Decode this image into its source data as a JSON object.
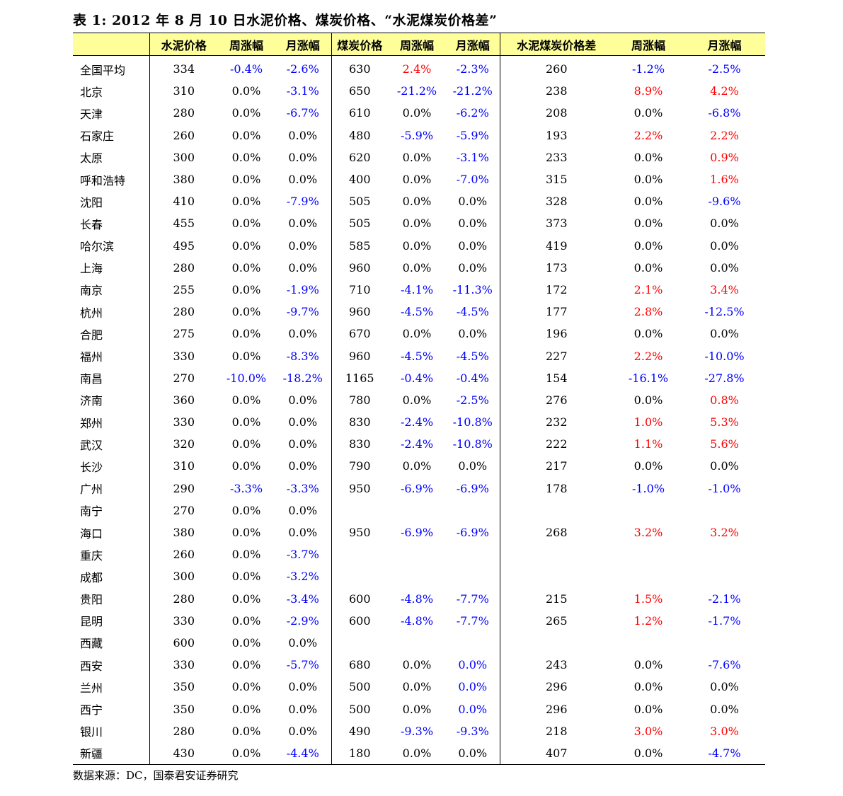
{
  "title": "表 1:  2012 年 8 月 10 日水泥价格、煤炭价格、“水泥煤炭价格差”",
  "headers": [
    "",
    "水泥价格",
    "周涨幅",
    "月涨幅",
    "煤炭价格",
    "周涨幅",
    "月涨幅",
    "水泥煤炭价格差",
    "周涨幅",
    "月涨幅"
  ],
  "rows": [
    [
      "全国平均",
      "334",
      "-0.4%",
      "-2.6%",
      "630",
      "2.4%",
      "-2.3%",
      "260",
      "-1.2%",
      "-2.5%"
    ],
    [
      "北京",
      "310",
      "0.0%",
      "-3.1%",
      "650",
      "-21.2%",
      "-21.2%",
      "238",
      "8.9%",
      "4.2%"
    ],
    [
      "天津",
      "280",
      "0.0%",
      "-6.7%",
      "610",
      "0.0%",
      "-6.2%",
      "208",
      "0.0%",
      "-6.8%"
    ],
    [
      "石家庄",
      "260",
      "0.0%",
      "0.0%",
      "480",
      "-5.9%",
      "-5.9%",
      "193",
      "2.2%",
      "2.2%"
    ],
    [
      "太原",
      "300",
      "0.0%",
      "0.0%",
      "620",
      "0.0%",
      "-3.1%",
      "233",
      "0.0%",
      "0.9%"
    ],
    [
      "呼和浩特",
      "380",
      "0.0%",
      "0.0%",
      "400",
      "0.0%",
      "-7.0%",
      "315",
      "0.0%",
      "1.6%"
    ],
    [
      "沈阳",
      "410",
      "0.0%",
      "-7.9%",
      "505",
      "0.0%",
      "0.0%",
      "328",
      "0.0%",
      "-9.6%"
    ],
    [
      "长春",
      "455",
      "0.0%",
      "0.0%",
      "505",
      "0.0%",
      "0.0%",
      "373",
      "0.0%",
      "0.0%"
    ],
    [
      "哈尔滨",
      "495",
      "0.0%",
      "0.0%",
      "585",
      "0.0%",
      "0.0%",
      "419",
      "0.0%",
      "0.0%"
    ],
    [
      "上海",
      "280",
      "0.0%",
      "0.0%",
      "960",
      "0.0%",
      "0.0%",
      "173",
      "0.0%",
      "0.0%"
    ],
    [
      "南京",
      "255",
      "0.0%",
      "-1.9%",
      "710",
      "-4.1%",
      "-11.3%",
      "172",
      "2.1%",
      "3.4%"
    ],
    [
      "杭州",
      "280",
      "0.0%",
      "-9.7%",
      "960",
      "-4.5%",
      "-4.5%",
      "177",
      "2.8%",
      "-12.5%"
    ],
    [
      "合肥",
      "275",
      "0.0%",
      "0.0%",
      "670",
      "0.0%",
      "0.0%",
      "196",
      "0.0%",
      "0.0%"
    ],
    [
      "福州",
      "330",
      "0.0%",
      "-8.3%",
      "960",
      "-4.5%",
      "-4.5%",
      "227",
      "2.2%",
      "-10.0%"
    ],
    [
      "南昌",
      "270",
      "-10.0%",
      "-18.2%",
      "1165",
      "-0.4%",
      "-0.4%",
      "154",
      "-16.1%",
      "-27.8%"
    ],
    [
      "济南",
      "360",
      "0.0%",
      "0.0%",
      "780",
      "0.0%",
      "-2.5%",
      "276",
      "0.0%",
      "0.8%"
    ],
    [
      "郑州",
      "330",
      "0.0%",
      "0.0%",
      "830",
      "-2.4%",
      "-10.8%",
      "232",
      "1.0%",
      "5.3%"
    ],
    [
      "武汉",
      "320",
      "0.0%",
      "0.0%",
      "830",
      "-2.4%",
      "-10.8%",
      "222",
      "1.1%",
      "5.6%"
    ],
    [
      "长沙",
      "310",
      "0.0%",
      "0.0%",
      "790",
      "0.0%",
      "0.0%",
      "217",
      "0.0%",
      "0.0%"
    ],
    [
      "广州",
      "290",
      "-3.3%",
      "-3.3%",
      "950",
      "-6.9%",
      "-6.9%",
      "178",
      "-1.0%",
      "-1.0%"
    ],
    [
      "南宁",
      "270",
      "0.0%",
      "0.0%",
      "",
      "",
      "",
      "",
      "",
      ""
    ],
    [
      "海口",
      "380",
      "0.0%",
      "0.0%",
      "950",
      "-6.9%",
      "-6.9%",
      "268",
      "3.2%",
      "3.2%"
    ],
    [
      "重庆",
      "260",
      "0.0%",
      "-3.7%",
      "",
      "",
      "",
      "",
      "",
      ""
    ],
    [
      "成都",
      "300",
      "0.0%",
      "-3.2%",
      "",
      "",
      "",
      "",
      "",
      ""
    ],
    [
      "贵阳",
      "280",
      "0.0%",
      "-3.4%",
      "600",
      "-4.8%",
      "-7.7%",
      "215",
      "1.5%",
      "-2.1%"
    ],
    [
      "昆明",
      "330",
      "0.0%",
      "-2.9%",
      "600",
      "-4.8%",
      "-7.7%",
      "265",
      "1.2%",
      "-1.7%"
    ],
    [
      "西藏",
      "600",
      "0.0%",
      "0.0%",
      "",
      "",
      "",
      "",
      "",
      ""
    ],
    [
      "西安",
      "330",
      "0.0%",
      "-5.7%",
      "680",
      "0.0%",
      "0.0%",
      "243",
      "0.0%",
      "-7.6%"
    ],
    [
      "兰州",
      "350",
      "0.0%",
      "0.0%",
      "500",
      "0.0%",
      "0.0%",
      "296",
      "0.0%",
      "0.0%"
    ],
    [
      "西宁",
      "350",
      "0.0%",
      "0.0%",
      "500",
      "0.0%",
      "0.0%",
      "296",
      "0.0%",
      "0.0%"
    ],
    [
      "银川",
      "280",
      "0.0%",
      "0.0%",
      "490",
      "-9.3%",
      "-9.3%",
      "218",
      "3.0%",
      "3.0%"
    ],
    [
      "新疆",
      "430",
      "0.0%",
      "-4.4%",
      "180",
      "0.0%",
      "0.0%",
      "407",
      "0.0%",
      "-4.7%"
    ]
  ],
  "blue_zero_cells": [
    [
      27,
      6
    ],
    [
      28,
      6
    ],
    [
      29,
      6
    ]
  ],
  "colors": {
    "header_bg": "#ffff99",
    "negative": "#0000ff",
    "positive": "#ff0000",
    "neutral": "#000000"
  },
  "source": "数据来源：DC，国泰君安证券研究"
}
